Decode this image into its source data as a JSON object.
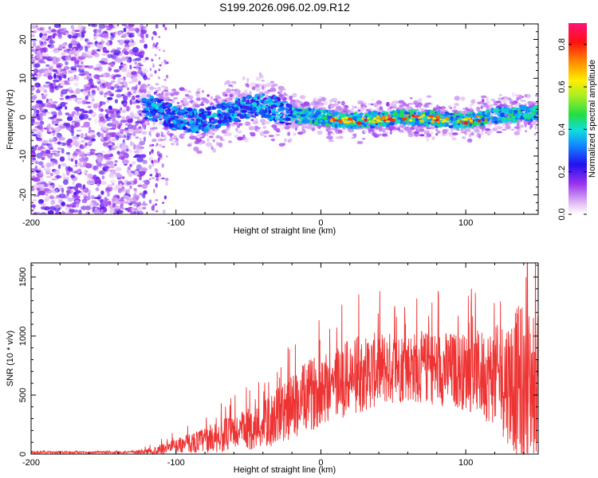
{
  "title": "S199.2026.096.02.09.R12",
  "chart_data": [
    {
      "id": "spectrogram",
      "type": "heatmap",
      "xlabel": "Height of straight line (km)",
      "ylabel": "Frequency (Hz)",
      "xlim": [
        -200,
        150
      ],
      "ylim": [
        -25,
        24
      ],
      "xticks": [
        -200,
        -100,
        0,
        100
      ],
      "yticks": [
        -20,
        -10,
        0,
        10,
        20
      ],
      "colorbar": {
        "label": "Normalized spectral amplitude",
        "range": [
          0,
          0.9
        ],
        "ticks": [
          0.0,
          0.2,
          0.4,
          0.6,
          0.8
        ]
      },
      "description_points": {
        "noise_region_x": [
          -200,
          -120
        ],
        "signal_track": [
          {
            "x": -120,
            "y": 2.5
          },
          {
            "x": -110,
            "y": 1.5
          },
          {
            "x": -100,
            "y": -0.5
          },
          {
            "x": -80,
            "y": -1.0
          },
          {
            "x": -60,
            "y": 1.5
          },
          {
            "x": -40,
            "y": 3.0
          },
          {
            "x": -30,
            "y": 2.0
          },
          {
            "x": -20,
            "y": 0.5
          },
          {
            "x": 0,
            "y": 0.0
          },
          {
            "x": 20,
            "y": -1.0
          },
          {
            "x": 40,
            "y": -0.5
          },
          {
            "x": 60,
            "y": 0.0
          },
          {
            "x": 80,
            "y": -0.5
          },
          {
            "x": 100,
            "y": -1.0
          },
          {
            "x": 120,
            "y": 0.5
          },
          {
            "x": 140,
            "y": 1.0
          }
        ]
      }
    },
    {
      "id": "snr",
      "type": "line",
      "xlabel": "Height of straight line (km)",
      "ylabel": "SNR (10 * v/v)",
      "xlim": [
        -200,
        150
      ],
      "ylim": [
        0,
        1620
      ],
      "xticks": [
        -200,
        -100,
        0,
        100
      ],
      "yticks": [
        0,
        500,
        1000,
        1500
      ],
      "color": "#ee3333",
      "envelope": [
        {
          "x": -200,
          "mean": 15,
          "amp": 8
        },
        {
          "x": -130,
          "mean": 15,
          "amp": 8
        },
        {
          "x": -115,
          "mean": 30,
          "amp": 35
        },
        {
          "x": -100,
          "mean": 70,
          "amp": 60
        },
        {
          "x": -80,
          "mean": 120,
          "amp": 110
        },
        {
          "x": -60,
          "mean": 180,
          "amp": 160
        },
        {
          "x": -40,
          "mean": 240,
          "amp": 200
        },
        {
          "x": -20,
          "mean": 400,
          "amp": 280
        },
        {
          "x": 0,
          "mean": 560,
          "amp": 320
        },
        {
          "x": 20,
          "mean": 650,
          "amp": 330
        },
        {
          "x": 40,
          "mean": 720,
          "amp": 320
        },
        {
          "x": 60,
          "mean": 740,
          "amp": 300
        },
        {
          "x": 80,
          "mean": 730,
          "amp": 320
        },
        {
          "x": 100,
          "mean": 700,
          "amp": 330
        },
        {
          "x": 120,
          "mean": 660,
          "amp": 420
        },
        {
          "x": 140,
          "mean": 600,
          "amp": 700
        },
        {
          "x": 150,
          "mean": 580,
          "amp": 600
        }
      ]
    }
  ]
}
